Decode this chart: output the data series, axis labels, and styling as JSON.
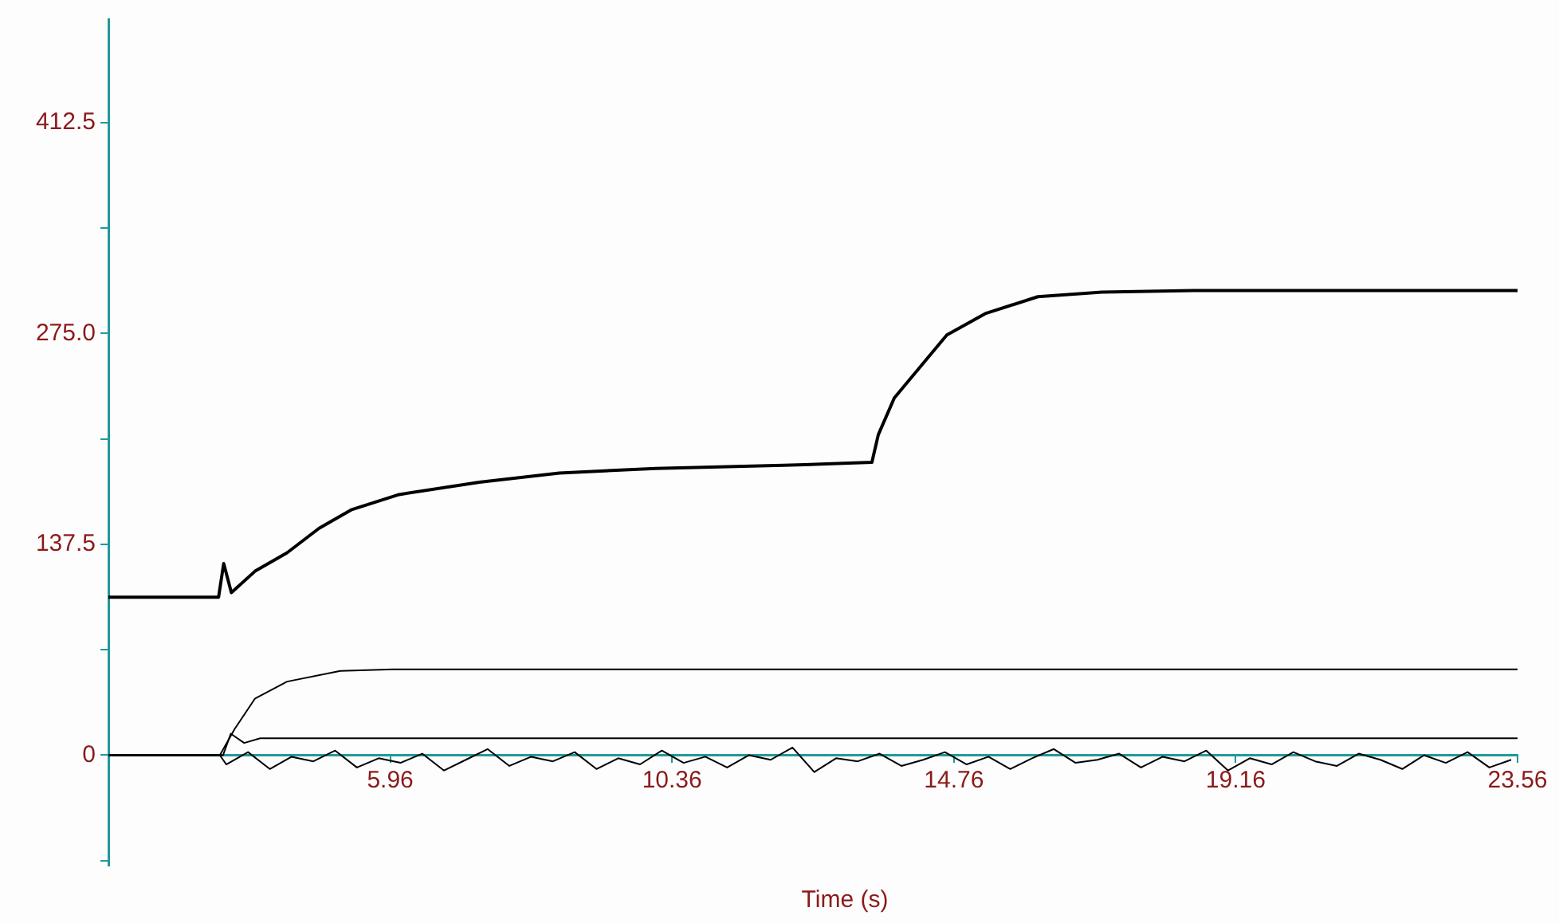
{
  "chart_data": {
    "type": "line",
    "xlabel": "Time (s)",
    "xlim": [
      1.56,
      23.56
    ],
    "xticks": [
      5.96,
      10.36,
      14.76,
      19.16,
      23.56
    ],
    "ylim": [
      -72,
      480
    ],
    "yticks": [
      {
        "value": -68.75,
        "label": null
      },
      0,
      {
        "value": 68.75,
        "label": null
      },
      137.5,
      {
        "value": 206.25,
        "label": null
      },
      {
        "value": 275,
        "label": "275.0"
      },
      {
        "value": 343.75,
        "label": null
      },
      412.5
    ],
    "grid": false,
    "legend": false,
    "marker": "none",
    "line_style": "solid",
    "series": [
      {
        "color": "#000000",
        "x": [
          1.56,
          3.28,
          3.36,
          3.48,
          3.85,
          4.35,
          4.85,
          5.35,
          6.1,
          7.35,
          8.6,
          10.1,
          12.1,
          13.48,
          13.58,
          13.83,
          14.25,
          14.65,
          15.25,
          16.07,
          17.07,
          18.5,
          23.56
        ],
        "values": [
          103,
          103,
          125,
          106,
          120,
          132,
          148,
          160,
          170,
          178,
          184,
          187,
          189,
          191,
          209,
          233,
          254,
          274,
          288,
          299,
          302,
          303,
          303
        ]
      },
      {
        "color": "#000000",
        "x": [
          1.56,
          3.3,
          3.53,
          3.85,
          4.35,
          5.18,
          6.0,
          23.56
        ],
        "values": [
          0,
          0,
          17,
          37,
          48,
          55,
          56,
          56
        ]
      },
      {
        "color": "#000000",
        "x": [
          1.56,
          3.35,
          3.47,
          3.68,
          3.93,
          23.56
        ],
        "values": [
          0,
          0,
          14,
          8,
          11,
          11
        ]
      },
      {
        "color": "#000000",
        "x": [
          1.56,
          3.3,
          3.4,
          3.74,
          4.08,
          4.42,
          4.76,
          5.1,
          5.44,
          5.78,
          6.12,
          6.46,
          6.8,
          7.14,
          7.48,
          7.82,
          8.16,
          8.5,
          8.84,
          9.18,
          9.52,
          9.86,
          10.2,
          10.54,
          10.88,
          11.22,
          11.56,
          11.9,
          12.24,
          12.58,
          12.92,
          13.26,
          13.6,
          13.94,
          14.28,
          14.62,
          14.96,
          15.3,
          15.64,
          15.98,
          16.32,
          16.66,
          17.0,
          17.34,
          17.68,
          18.02,
          18.36,
          18.7,
          19.04,
          19.38,
          19.72,
          20.06,
          20.4,
          20.74,
          21.08,
          21.42,
          21.76,
          22.1,
          22.44,
          22.78,
          23.12,
          23.46
        ],
        "values": [
          0,
          0,
          -6,
          2,
          -9,
          -1,
          -4,
          3,
          -8,
          -2,
          -5,
          1,
          -10,
          -3,
          4,
          -7,
          -1,
          -4,
          2,
          -9,
          -2,
          -6,
          3,
          -5,
          -1,
          -8,
          0,
          -3,
          5,
          -11,
          -2,
          -4,
          1,
          -7,
          -3,
          2,
          -6,
          -1,
          -9,
          -2,
          4,
          -5,
          -3,
          1,
          -8,
          -1,
          -4,
          3,
          -10,
          -2,
          -6,
          2,
          -4,
          -7,
          1,
          -3,
          -9,
          0,
          -5,
          2,
          -8,
          -3
        ]
      }
    ]
  }
}
